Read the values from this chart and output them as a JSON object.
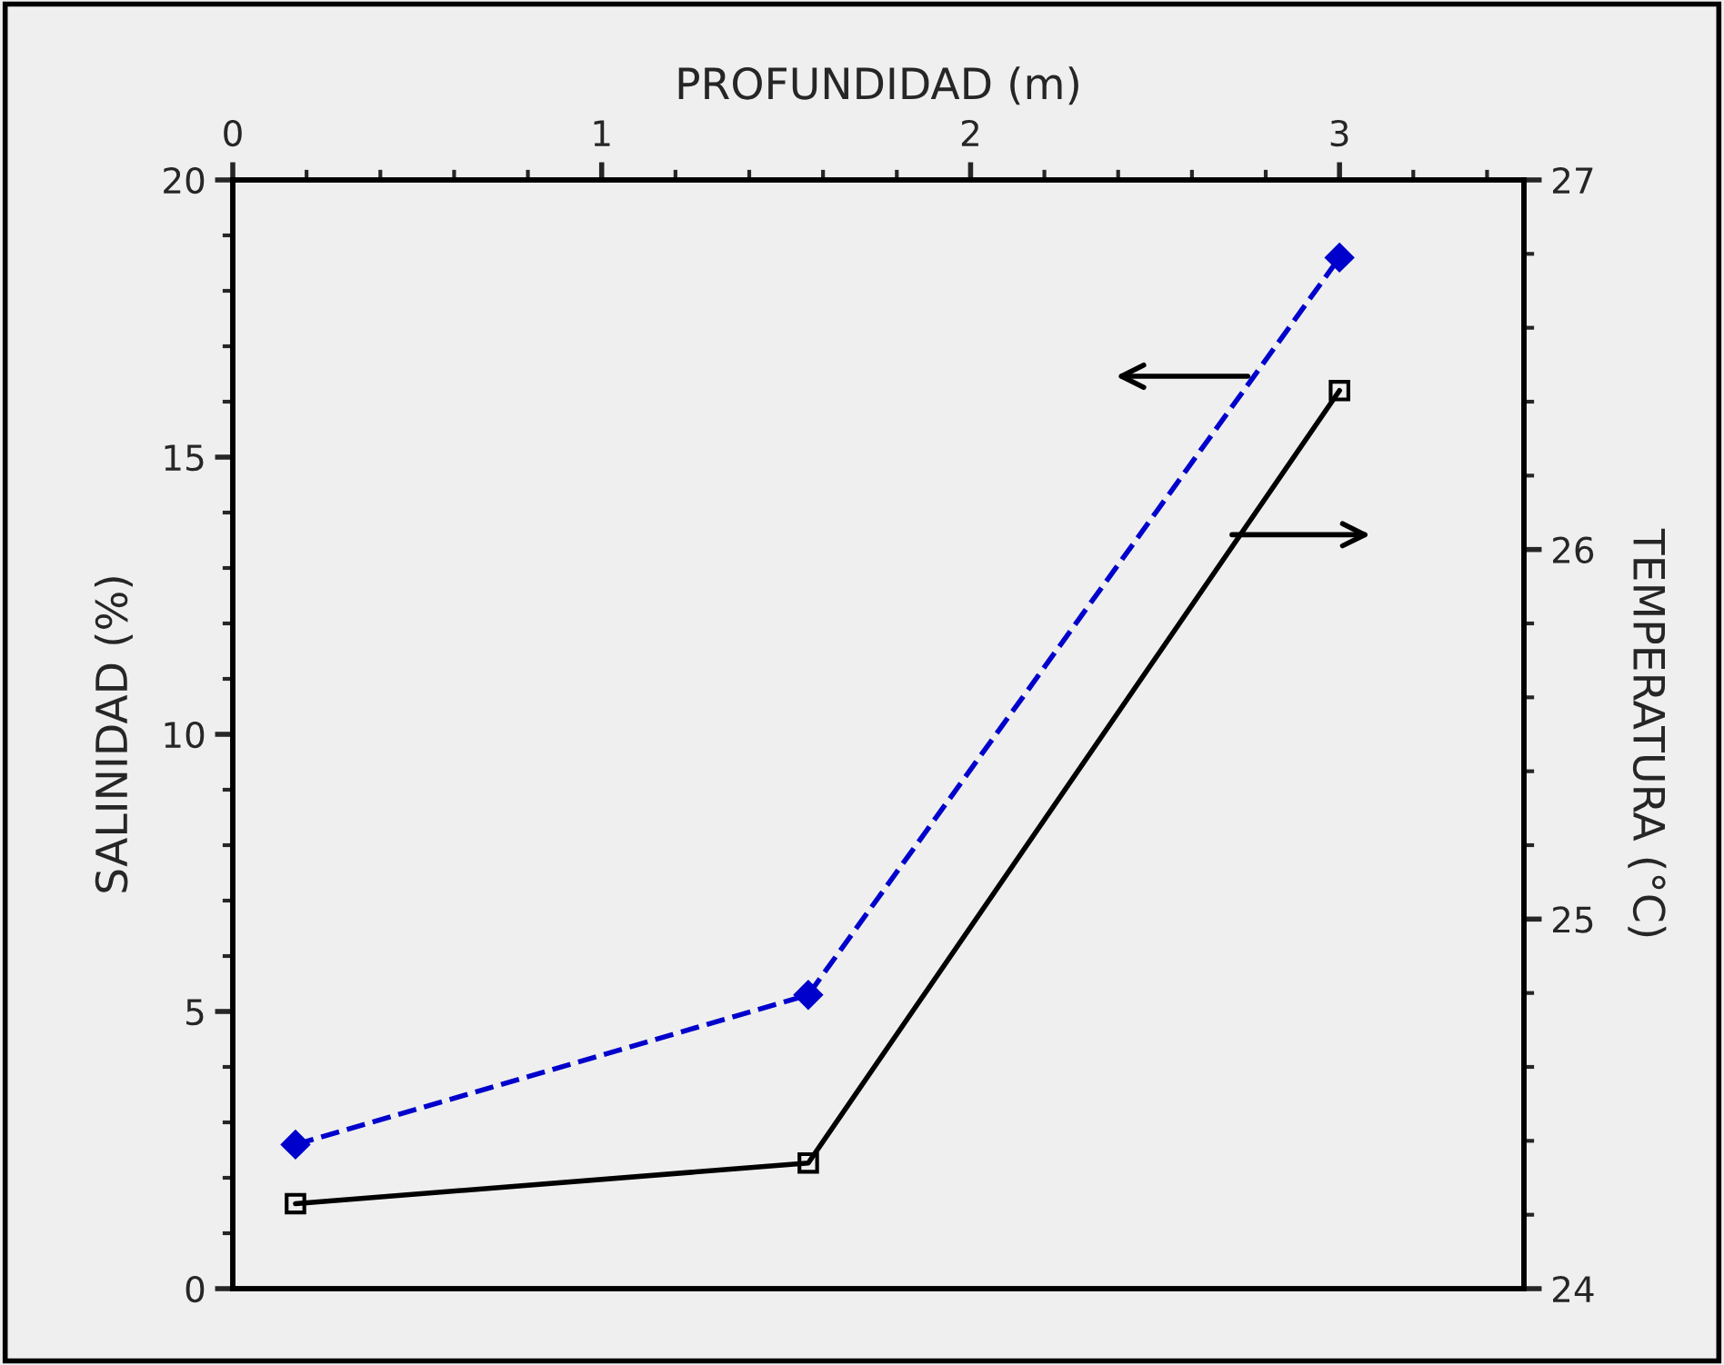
{
  "chart_data": {
    "type": "line",
    "xlabel": "PROFUNDIDAD (m)",
    "ylabel": "SALINIDAD (%)",
    "y2label": "TEMPERATURA (°C)",
    "x": [
      0.17,
      1.56,
      3.0
    ],
    "series": [
      {
        "color": "#0000cc",
        "values": [
          2.6,
          5.3,
          18.6
        ],
        "marker": "diamond",
        "line_style": "dashed"
      },
      {
        "color": "#000000",
        "values": [
          24.23,
          24.34,
          26.43
        ],
        "marker": "square",
        "line_style": "solid",
        "axis": "y2"
      }
    ],
    "xlim": [
      0,
      3.5
    ],
    "xticks": [
      0,
      1,
      2,
      3
    ],
    "ylim": [
      0,
      20
    ],
    "yticks": [
      0,
      5,
      10,
      15,
      20
    ],
    "y2lim": [
      24,
      27
    ],
    "y2ticks": [
      24,
      25,
      26,
      27
    ],
    "grid": false,
    "legend": false
  }
}
